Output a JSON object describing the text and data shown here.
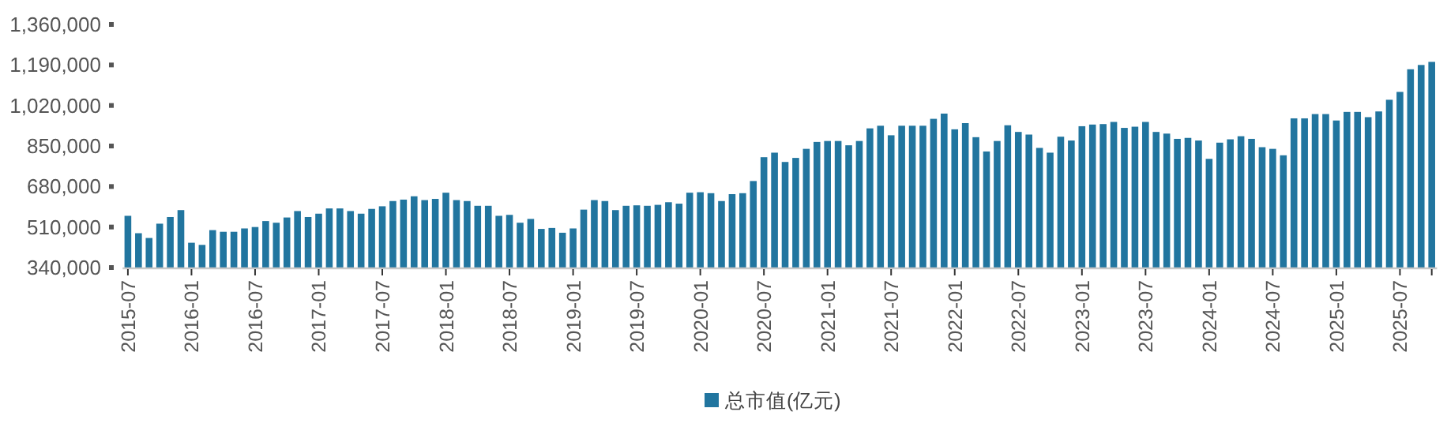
{
  "chart_data": {
    "type": "bar",
    "categories": [
      "2015-07",
      null,
      null,
      null,
      null,
      null,
      "2016-01",
      null,
      null,
      null,
      null,
      null,
      "2016-07",
      null,
      null,
      null,
      null,
      null,
      "2017-01",
      null,
      null,
      null,
      null,
      null,
      "2017-07",
      null,
      null,
      null,
      null,
      null,
      "2018-01",
      null,
      null,
      null,
      null,
      null,
      "2018-07",
      null,
      null,
      null,
      null,
      null,
      "2019-01",
      null,
      null,
      null,
      null,
      null,
      "2019-07",
      null,
      null,
      null,
      null,
      null,
      "2020-01",
      null,
      null,
      null,
      null,
      null,
      "2020-07",
      null,
      null,
      null,
      null,
      null,
      "2021-01",
      null,
      null,
      null,
      null,
      null,
      "2021-07",
      null,
      null,
      null,
      null,
      null,
      "2022-01",
      null,
      null,
      null,
      null,
      null,
      "2022-07",
      null,
      null,
      null,
      null,
      null,
      "2023-01",
      null,
      null,
      null,
      null,
      null,
      "2023-07",
      null,
      null,
      null,
      null,
      null,
      "2024-01",
      null,
      null,
      null,
      null,
      null,
      "2024-07",
      null,
      null,
      null,
      null,
      null,
      "2025-01",
      null,
      null,
      null,
      null,
      null,
      "2025-07",
      null,
      null,
      null
    ],
    "series": [
      {
        "name": "总市值(亿元)",
        "color": "#21759f",
        "values": [
          557000,
          484000,
          464000,
          524000,
          552000,
          581000,
          444000,
          435000,
          497000,
          490000,
          490000,
          504000,
          510000,
          535000,
          528000,
          550000,
          577000,
          552000,
          566000,
          588000,
          588000,
          577000,
          566000,
          586000,
          597000,
          619000,
          625000,
          639000,
          623000,
          628000,
          654000,
          623000,
          619000,
          599000,
          599000,
          557000,
          561000,
          528000,
          544000,
          502000,
          506000,
          486000,
          504000,
          583000,
          623000,
          619000,
          581000,
          599000,
          601000,
          599000,
          603000,
          614000,
          608000,
          654000,
          656000,
          652000,
          619000,
          648000,
          652000,
          703000,
          803000,
          822000,
          783000,
          800000,
          838000,
          867000,
          871000,
          871000,
          853000,
          871000,
          924000,
          935000,
          895000,
          935000,
          935000,
          935000,
          964000,
          986000,
          920000,
          946000,
          887000,
          827000,
          871000,
          937000,
          909000,
          898000,
          842000,
          822000,
          889000,
          873000,
          933000,
          940000,
          942000,
          951000,
          926000,
          931000,
          951000,
          909000,
          902000,
          880000,
          884000,
          873000,
          796000,
          864000,
          878000,
          891000,
          880000,
          845000,
          838000,
          811000,
          966000,
          966000,
          984000,
          984000,
          957000,
          993000,
          993000,
          971000,
          995000,
          1044000,
          1077000,
          1172000,
          1190000,
          1203000
        ]
      }
    ],
    "ylim": [
      340000,
      1360000
    ],
    "yticks": [
      {
        "value": 340000,
        "label": "340,000"
      },
      {
        "value": 510000,
        "label": "510,000"
      },
      {
        "value": 680000,
        "label": "680,000"
      },
      {
        "value": 850000,
        "label": "850,000"
      },
      {
        "value": 1020000,
        "label": "1,020,000"
      },
      {
        "value": 1190000,
        "label": "1,190,000"
      },
      {
        "value": 1360000,
        "label": "1,360,000"
      }
    ],
    "legend": "bottom"
  }
}
